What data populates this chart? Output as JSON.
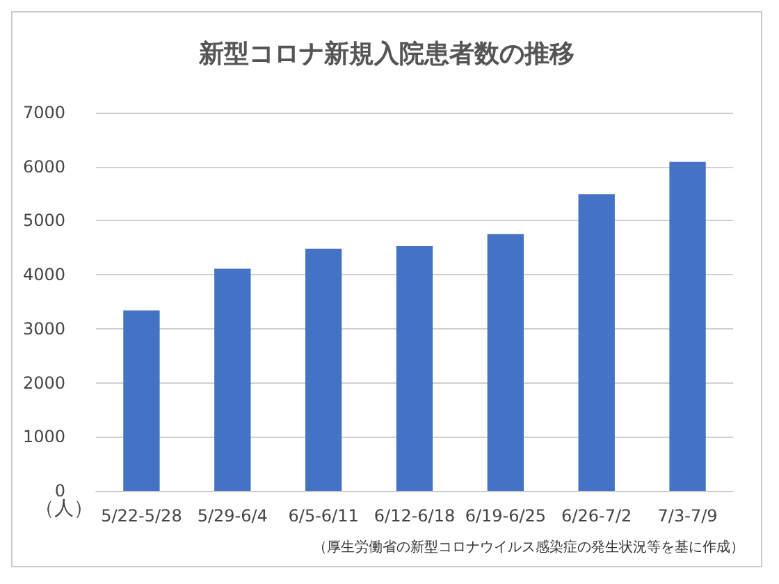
{
  "chart_data": {
    "type": "bar",
    "title": "新型コロナ新規入院患者数の推移",
    "ylabel": "（人）",
    "categories": [
      "5/22-5/28",
      "5/29-6/4",
      "6/5-6/11",
      "6/12-6/18",
      "6/19-6/25",
      "6/26-7/2",
      "7/3-7/9"
    ],
    "values": [
      3340,
      4110,
      4480,
      4530,
      4750,
      5490,
      6090
    ],
    "color": "#4472c4",
    "ylim": [
      0,
      7000
    ],
    "yticks": [
      0,
      1000,
      2000,
      3000,
      4000,
      5000,
      6000,
      7000
    ],
    "grid": "y",
    "annotations": [
      "（厚生労働省の新型コロナウイルス感染症の発生状況等を基に作成）"
    ]
  }
}
